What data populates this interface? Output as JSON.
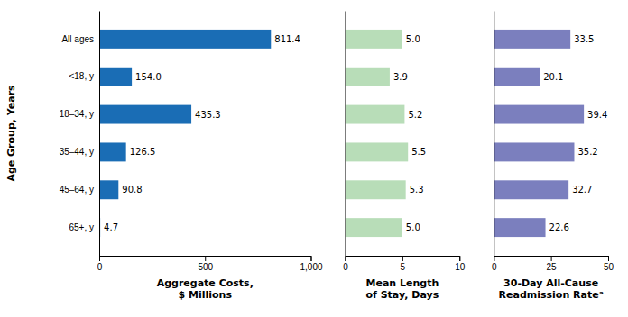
{
  "chart_data": [
    {
      "type": "bar",
      "orientation": "horizontal",
      "categories": [
        "All ages",
        "<18, y",
        "18–34, y",
        "35–44, y",
        "45–64, y",
        "65+, y"
      ],
      "values": [
        811.4,
        154.0,
        435.3,
        126.5,
        90.8,
        4.7
      ],
      "value_labels": [
        "811.4",
        "154.0",
        "435.3",
        "126.5",
        "90.8",
        "4.7"
      ],
      "color": "#1a6db5",
      "xlim": [
        0,
        1000
      ],
      "xticks": [
        0,
        500,
        {
          "value": 1000,
          "label": "1,000"
        }
      ],
      "xlabel": "Aggregate Costs,\n$ Millions",
      "ylabel": "Age Group, Years",
      "data_labels": true,
      "grid": false
    },
    {
      "type": "bar",
      "orientation": "horizontal",
      "categories": [
        "All ages",
        "<18, y",
        "18–34, y",
        "35–44, y",
        "45–64, y",
        "65+, y"
      ],
      "values": [
        5.0,
        3.9,
        5.2,
        5.5,
        5.3,
        5.0
      ],
      "value_labels": [
        "5.0",
        "3.9",
        "5.2",
        "5.5",
        "5.3",
        "5.0"
      ],
      "color": "#b8ddb8",
      "xlim": [
        0,
        10
      ],
      "xticks": [
        0,
        5,
        10
      ],
      "xlabel": "Mean Length\nof Stay, Days",
      "data_labels": true,
      "grid": false,
      "tick_labels": "x"
    },
    {
      "type": "bar",
      "orientation": "horizontal",
      "categories": [
        "All ages",
        "<18, y",
        "18–34, y",
        "35–44, y",
        "45–64, y",
        "65+, y"
      ],
      "values": [
        33.5,
        20.1,
        39.4,
        35.2,
        32.7,
        22.6
      ],
      "value_labels": [
        "33.5",
        "20.1",
        "39.4",
        "35.2",
        "32.7",
        "22.6"
      ],
      "color": "#7b7fbe",
      "xlim": [
        0,
        50
      ],
      "xticks": [
        0,
        25,
        50
      ],
      "xlabel": "30-Day All-Cause\nReadmission Rateᵃ",
      "data_labels": true,
      "grid": false,
      "tick_labels": "x"
    }
  ]
}
